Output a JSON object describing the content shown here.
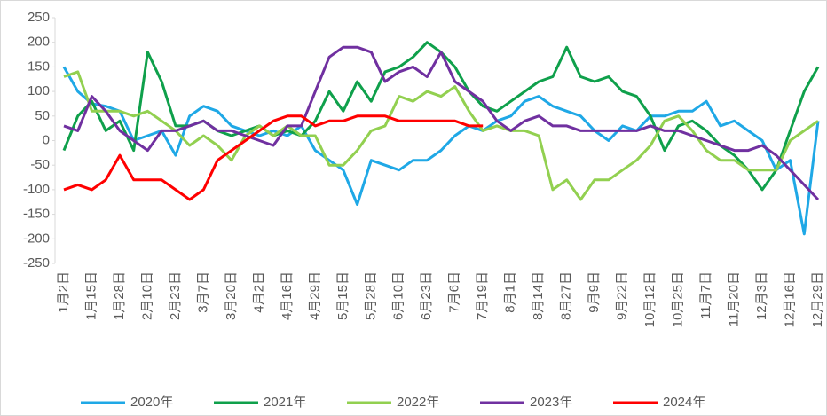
{
  "chart_data": {
    "type": "line",
    "categories": [
      "1月2日",
      null,
      "1月15日",
      null,
      "1月28日",
      null,
      "2月10日",
      null,
      "2月23日",
      null,
      "3月7日",
      null,
      "3月20日",
      null,
      "4月2日",
      null,
      "4月16日",
      null,
      "4月29日",
      null,
      "5月15日",
      null,
      "5月28日",
      null,
      "6月10日",
      null,
      "6月23日",
      null,
      "7月6日",
      null,
      "7月19日",
      null,
      "8月1日",
      null,
      "8月14日",
      null,
      "8月27日",
      null,
      "9月9日",
      null,
      "9月22日",
      null,
      "10月12日",
      null,
      "10月25日",
      null,
      "11月7日",
      null,
      "11月20日",
      null,
      "12月3日",
      null,
      "12月16日",
      null,
      "12月29日"
    ],
    "series": [
      {
        "name": "2020年",
        "color": "#1fa8e6",
        "values": [
          150,
          100,
          75,
          70,
          60,
          0,
          10,
          20,
          -30,
          50,
          70,
          60,
          30,
          20,
          10,
          20,
          10,
          30,
          -20,
          -40,
          -60,
          -130,
          -40,
          -50,
          -60,
          -40,
          -40,
          -20,
          10,
          30,
          20,
          40,
          50,
          80,
          90,
          70,
          60,
          50,
          20,
          0,
          30,
          20,
          50,
          50,
          60,
          60,
          80,
          30,
          40,
          20,
          0,
          -60,
          -40,
          -190,
          40
        ]
      },
      {
        "name": "2021年",
        "color": "#0fa04b",
        "values": [
          -20,
          50,
          80,
          20,
          40,
          -20,
          180,
          120,
          30,
          30,
          40,
          20,
          10,
          20,
          30,
          10,
          20,
          10,
          40,
          100,
          60,
          120,
          80,
          140,
          150,
          170,
          200,
          180,
          150,
          100,
          70,
          60,
          80,
          100,
          120,
          130,
          190,
          130,
          120,
          130,
          100,
          90,
          50,
          -20,
          30,
          40,
          20,
          -10,
          -30,
          -60,
          -100,
          -60,
          20,
          100,
          150
        ]
      },
      {
        "name": "2022年",
        "color": "#92d050",
        "values": [
          130,
          140,
          60,
          60,
          60,
          50,
          60,
          40,
          20,
          -10,
          10,
          -10,
          -40,
          10,
          30,
          10,
          30,
          10,
          10,
          -50,
          -50,
          -20,
          20,
          30,
          90,
          80,
          100,
          90,
          110,
          60,
          20,
          30,
          20,
          20,
          10,
          -100,
          -80,
          -120,
          -80,
          -80,
          -60,
          -40,
          -10,
          40,
          50,
          20,
          -20,
          -40,
          -40,
          -60,
          -60,
          -60,
          0,
          20,
          40
        ]
      },
      {
        "name": "2023年",
        "color": "#7030a0",
        "values": [
          30,
          20,
          90,
          60,
          20,
          0,
          -20,
          20,
          20,
          30,
          40,
          20,
          20,
          10,
          0,
          -10,
          30,
          30,
          100,
          170,
          190,
          190,
          180,
          120,
          140,
          150,
          130,
          180,
          120,
          100,
          80,
          40,
          20,
          40,
          50,
          30,
          30,
          20,
          20,
          20,
          20,
          20,
          30,
          20,
          20,
          10,
          0,
          -10,
          -20,
          -20,
          -10,
          -30,
          -60,
          -90,
          -120
        ]
      },
      {
        "name": "2024年",
        "color": "#ff0000",
        "values": [
          -100,
          -90,
          -100,
          -80,
          -30,
          -80,
          -80,
          -80,
          -100,
          -120,
          -100,
          -40,
          -20,
          0,
          20,
          40,
          50,
          50,
          30,
          40,
          40,
          50,
          50,
          50,
          40,
          40,
          40,
          40,
          40,
          30,
          30,
          null,
          null,
          null,
          null,
          null,
          null,
          null,
          null,
          null,
          null,
          null,
          null,
          null,
          null,
          null,
          null,
          null,
          null,
          null,
          null,
          null,
          null,
          null,
          null
        ]
      }
    ],
    "ylim": [
      -250,
      250
    ],
    "yticks": [
      -250,
      -200,
      -150,
      -100,
      -50,
      0,
      50,
      100,
      150,
      200,
      250
    ],
    "grid": false
  }
}
